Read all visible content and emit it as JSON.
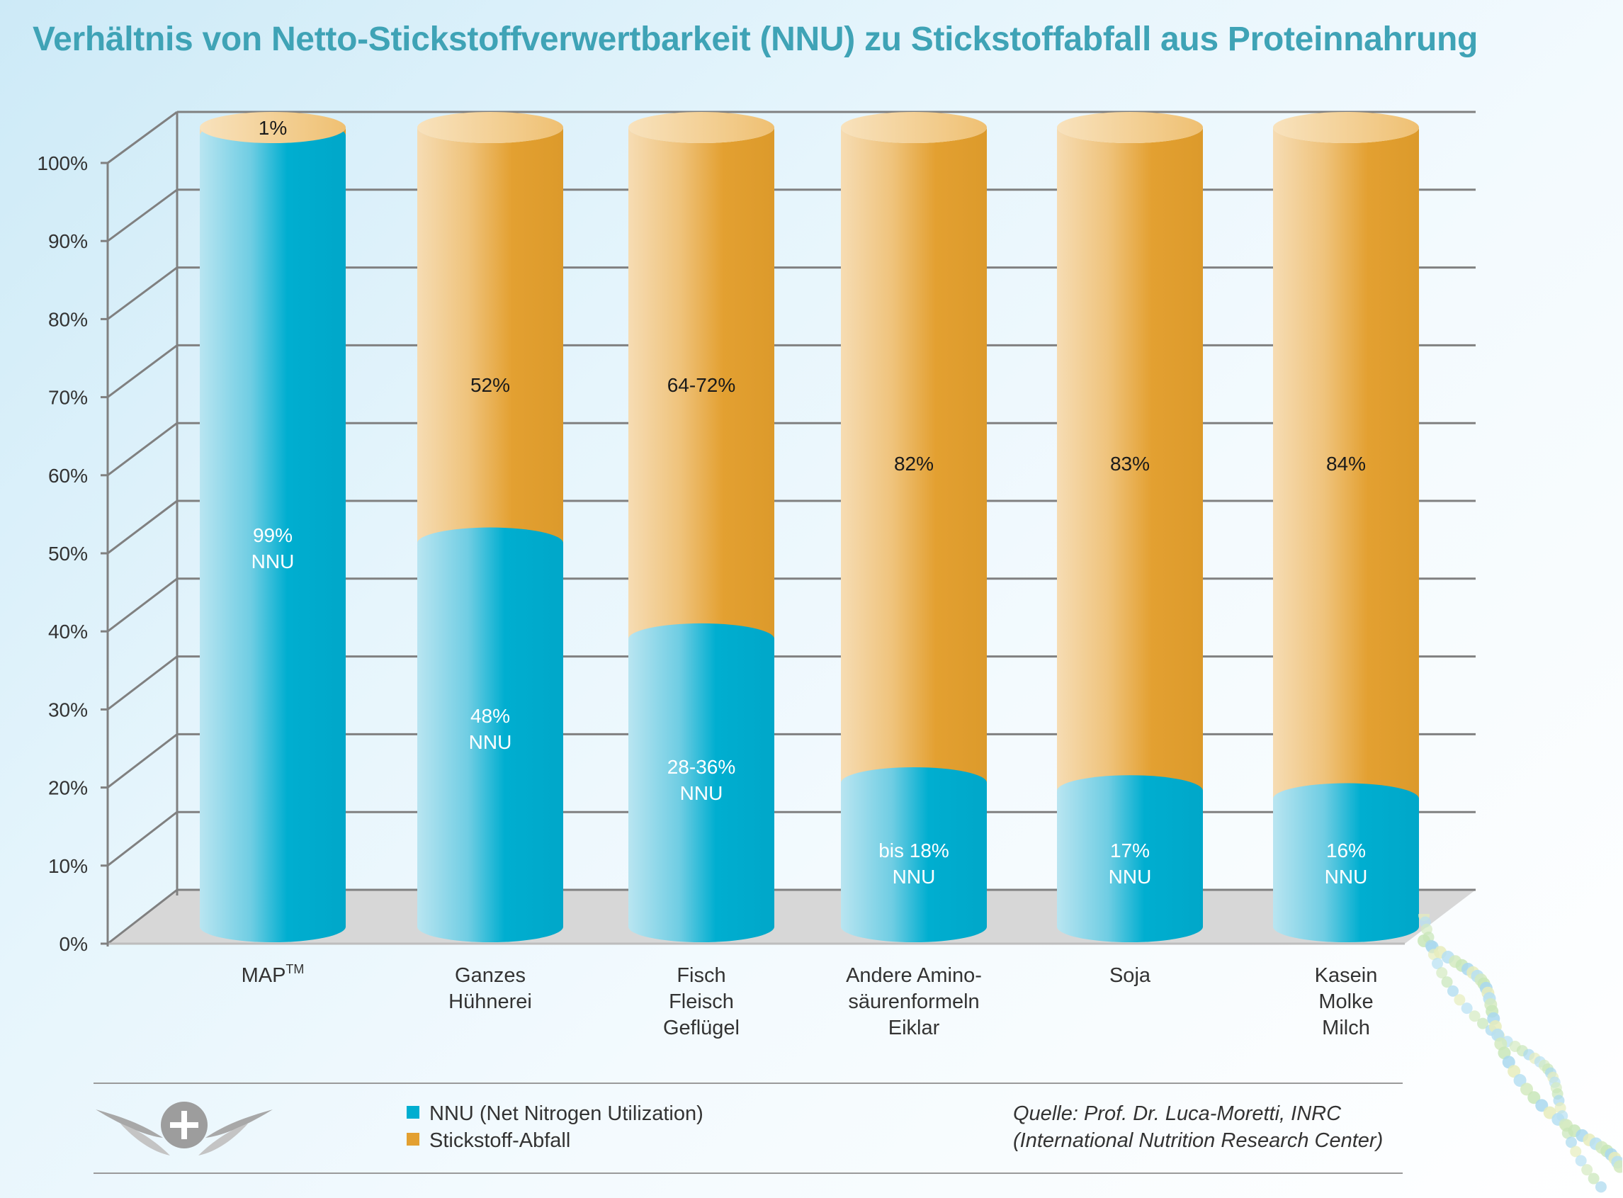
{
  "title": "Verhältnis von Netto-Stickstoffverwertbarkeit (NNU) zu Stickstoffabfall aus Proteinnahrung",
  "colors": {
    "nnu": "#00aed0",
    "nnu_light": "#b3e3f0",
    "waste": "#e3a031",
    "waste_light": "#f5dcb0",
    "grid": "#808080",
    "floor": "#d7d7d7",
    "title": "#3fa3b6"
  },
  "chart_data": {
    "type": "bar",
    "stacked": true,
    "title": "Verhältnis von Netto-Stickstoffverwertbarkeit (NNU) zu Stickstoffabfall aus Proteinnahrung",
    "ylim": [
      0,
      100
    ],
    "yticks": [
      "0%",
      "10%",
      "20%",
      "30%",
      "40%",
      "50%",
      "60%",
      "70%",
      "80%",
      "90%",
      "100%"
    ],
    "categories": [
      {
        "lines": [
          "MAP"
        ],
        "sup": "TM"
      },
      {
        "lines": [
          "Ganzes",
          "Hühnerei"
        ]
      },
      {
        "lines": [
          "Fisch",
          "Fleisch",
          "Geflügel"
        ]
      },
      {
        "lines": [
          "Andere Amino-",
          "säurenformeln",
          "Eiklar"
        ]
      },
      {
        "lines": [
          "Soja"
        ]
      },
      {
        "lines": [
          "Kasein",
          "Molke",
          "Milch"
        ]
      }
    ],
    "series": [
      {
        "name": "NNU (Net Nitrogen Utilization)",
        "values": [
          99,
          48,
          36,
          18,
          17,
          16
        ],
        "labels": [
          [
            "99%",
            "NNU"
          ],
          [
            "48%",
            "NNU"
          ],
          [
            "28-36%",
            "NNU"
          ],
          [
            "bis 18%",
            "NNU"
          ],
          [
            "17%",
            "NNU"
          ],
          [
            "16%",
            "NNU"
          ]
        ]
      },
      {
        "name": "Stickstoff-Abfall",
        "values": [
          1,
          52,
          64,
          82,
          83,
          84
        ],
        "labels": [
          "1%",
          "52%",
          "64-72%",
          "82%",
          "83%",
          "84%"
        ]
      }
    ]
  },
  "legend": {
    "nnu": "NNU (Net Nitrogen Utilization)",
    "waste": "Stickstoff-Abfall"
  },
  "source": {
    "line1": "Quelle: Prof. Dr. Luca-Moretti, INRC",
    "line2": "(International Nutrition Research Center)"
  }
}
